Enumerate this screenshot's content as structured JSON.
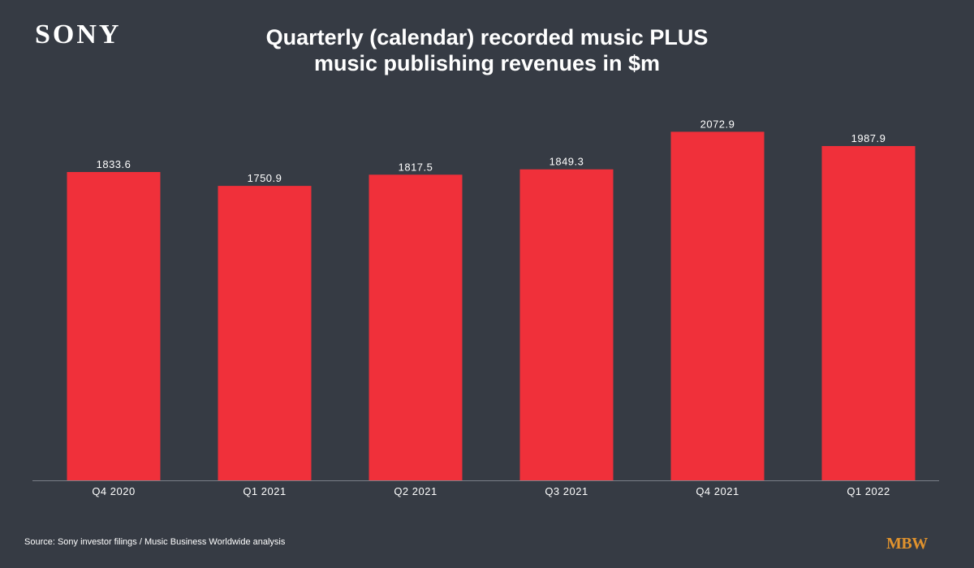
{
  "brand": {
    "logo_text": "SONY",
    "publisher_logo": "MBW",
    "publisher_color": "#e0922d"
  },
  "chart_data": {
    "type": "bar",
    "title_lines": [
      "Quarterly (calendar) recorded music PLUS",
      "music publishing revenues in $m"
    ],
    "categories": [
      "Q4 2020",
      "Q1 2021",
      "Q2 2021",
      "Q3 2021",
      "Q4 2021",
      "Q1 2022"
    ],
    "values": [
      1833.6,
      1750.9,
      1817.5,
      1849.3,
      2072.9,
      1987.9
    ],
    "value_labels": [
      "1833.6",
      "1750.9",
      "1817.5",
      "1849.3",
      "2072.9",
      "1987.9"
    ],
    "ylim": [
      0,
      2200
    ],
    "grid": false,
    "legend": "none",
    "bar_color": "#f0303a",
    "background_color": "#363b44",
    "source": "Source: Sony investor filings / Music Business Worldwide analysis"
  }
}
